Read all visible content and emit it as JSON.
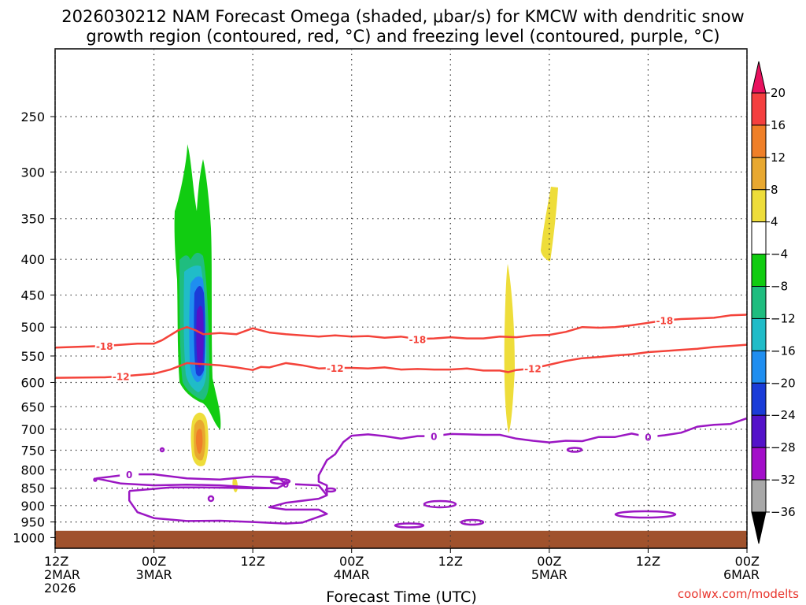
{
  "chart_data": {
    "type": "time-height cross-section",
    "title_line1": "2026030212 NAM Forecast Omega (shaded, μbar/s) for KMCW with dendritic snow",
    "title_line2": "growth region (contoured, red, °C) and freezing level (contoured, purple, °C)",
    "xlabel": "Forecast Time (UTC)",
    "credit": "coolwx.com/modelts",
    "x_range_hours": [
      0,
      84
    ],
    "x_ticks": [
      {
        "hour": 0,
        "lines": [
          "12Z",
          "2MAR",
          "2026"
        ]
      },
      {
        "hour": 12,
        "lines": [
          "00Z",
          "3MAR"
        ]
      },
      {
        "hour": 24,
        "lines": [
          "12Z"
        ]
      },
      {
        "hour": 36,
        "lines": [
          "00Z",
          "4MAR"
        ]
      },
      {
        "hour": 48,
        "lines": [
          "12Z"
        ]
      },
      {
        "hour": 60,
        "lines": [
          "00Z",
          "5MAR"
        ]
      },
      {
        "hour": 72,
        "lines": [
          "12Z"
        ]
      },
      {
        "hour": 84,
        "lines": [
          "00Z",
          "6MAR"
        ]
      }
    ],
    "y_ticks_hpa": [
      250,
      300,
      350,
      400,
      450,
      500,
      550,
      600,
      650,
      700,
      750,
      800,
      850,
      900,
      950,
      1000
    ],
    "y_range_hpa": [
      200,
      1036
    ],
    "ground_hpa": 978,
    "colorbar": {
      "labels": [
        "20",
        "16",
        "12",
        "8",
        "4",
        "−4",
        "−8",
        "−12",
        "−16",
        "−20",
        "−24",
        "−28",
        "−32",
        "−36"
      ],
      "colors": [
        "#e8115e",
        "#f43f3f",
        "#ef7f28",
        "#e8a830",
        "#eedd3a",
        "#ffffff",
        "#11cc11",
        "#1fbd7f",
        "#20bcc8",
        "#1f8ef0",
        "#1a3cd8",
        "#5412c9",
        "#a30ec9",
        "#a8a8a8",
        "#000000"
      ]
    },
    "contours": {
      "dgz_minus18": {
        "label": "-18",
        "color": "#f4433a",
        "points": [
          [
            0,
            535
          ],
          [
            6,
            532
          ],
          [
            10,
            528
          ],
          [
            12,
            528
          ],
          [
            13,
            522
          ],
          [
            15,
            505
          ],
          [
            16,
            500
          ],
          [
            17,
            505
          ],
          [
            18,
            512
          ],
          [
            20,
            510
          ],
          [
            22,
            512
          ],
          [
            24,
            502
          ],
          [
            26,
            509
          ],
          [
            28,
            512
          ],
          [
            30,
            514
          ],
          [
            32,
            516
          ],
          [
            34,
            514
          ],
          [
            36,
            516
          ],
          [
            38,
            515
          ],
          [
            40,
            518
          ],
          [
            42,
            516
          ],
          [
            44,
            520
          ],
          [
            46,
            519
          ],
          [
            48,
            517
          ],
          [
            50,
            519
          ],
          [
            52,
            519
          ],
          [
            54,
            516
          ],
          [
            56,
            517
          ],
          [
            58,
            514
          ],
          [
            60,
            513
          ],
          [
            62,
            508
          ],
          [
            64,
            500
          ],
          [
            66,
            501
          ],
          [
            68,
            500
          ],
          [
            70,
            497
          ],
          [
            72,
            493
          ],
          [
            74,
            489
          ],
          [
            76,
            487
          ],
          [
            78,
            486
          ],
          [
            80,
            485
          ],
          [
            82,
            481
          ],
          [
            84,
            480
          ]
        ]
      },
      "dgz_minus12": {
        "label": "-12",
        "color": "#f4433a",
        "points": [
          [
            0,
            591
          ],
          [
            6,
            590
          ],
          [
            8,
            588
          ],
          [
            12,
            583
          ],
          [
            14,
            575
          ],
          [
            16,
            563
          ],
          [
            18,
            565
          ],
          [
            20,
            567
          ],
          [
            22,
            571
          ],
          [
            24,
            576
          ],
          [
            25,
            570
          ],
          [
            26,
            571
          ],
          [
            28,
            563
          ],
          [
            30,
            567
          ],
          [
            32,
            573
          ],
          [
            34,
            572
          ],
          [
            36,
            572
          ],
          [
            38,
            573
          ],
          [
            40,
            571
          ],
          [
            42,
            575
          ],
          [
            44,
            574
          ],
          [
            46,
            575
          ],
          [
            48,
            575
          ],
          [
            50,
            573
          ],
          [
            52,
            577
          ],
          [
            54,
            577
          ],
          [
            55,
            580
          ],
          [
            56,
            576
          ],
          [
            58,
            573
          ],
          [
            60,
            566
          ],
          [
            62,
            559
          ],
          [
            64,
            554
          ],
          [
            66,
            552
          ],
          [
            68,
            549
          ],
          [
            70,
            547
          ],
          [
            72,
            543
          ],
          [
            74,
            541
          ],
          [
            76,
            539
          ],
          [
            78,
            537
          ],
          [
            80,
            534
          ],
          [
            82,
            532
          ],
          [
            84,
            530
          ]
        ]
      },
      "freezing_main": {
        "label": "0",
        "color": "#9b17c3",
        "points": [
          [
            33,
            870
          ],
          [
            33,
            842
          ],
          [
            32,
            832
          ],
          [
            32,
            815
          ],
          [
            33,
            775
          ],
          [
            34,
            760
          ],
          [
            35,
            730
          ],
          [
            36,
            715
          ],
          [
            38,
            712
          ],
          [
            40,
            716
          ],
          [
            42,
            722
          ],
          [
            44,
            716
          ],
          [
            46,
            716
          ],
          [
            48,
            711
          ],
          [
            50,
            712
          ],
          [
            52,
            713
          ],
          [
            54,
            713
          ],
          [
            56,
            722
          ],
          [
            58,
            727
          ],
          [
            60,
            731
          ],
          [
            62,
            727
          ],
          [
            64,
            728
          ],
          [
            66,
            718
          ],
          [
            68,
            718
          ],
          [
            70,
            710
          ],
          [
            72,
            718
          ],
          [
            74,
            714
          ],
          [
            76,
            708
          ],
          [
            78,
            694
          ],
          [
            80,
            690
          ],
          [
            82,
            688
          ],
          [
            84,
            675
          ]
        ]
      },
      "freezing_low": {
        "label": "0",
        "color": "#9b17c3",
        "points": [
          [
            9,
            858
          ],
          [
            14,
            848
          ],
          [
            18,
            848
          ],
          [
            24,
            850
          ],
          [
            27,
            850
          ],
          [
            28,
            838
          ],
          [
            32,
            842
          ],
          [
            33,
            870
          ],
          [
            32,
            880
          ],
          [
            28,
            892
          ],
          [
            26,
            905
          ],
          [
            28,
            912
          ],
          [
            32,
            912
          ],
          [
            33,
            925
          ],
          [
            30,
            952
          ],
          [
            28,
            955
          ],
          [
            24,
            950
          ],
          [
            20,
            946
          ],
          [
            16,
            947
          ],
          [
            12,
            938
          ],
          [
            10,
            920
          ],
          [
            9,
            885
          ],
          [
            9,
            858
          ]
        ]
      },
      "freezing_mid": {
        "label": "0",
        "color": "#9b17c3",
        "points": [
          [
            5,
            823
          ],
          [
            9,
            812
          ],
          [
            12,
            812
          ],
          [
            16,
            823
          ],
          [
            20,
            826
          ],
          [
            24,
            818
          ],
          [
            27,
            820
          ],
          [
            28,
            838
          ],
          [
            27,
            850
          ],
          [
            24,
            848
          ],
          [
            20,
            842
          ],
          [
            16,
            840
          ],
          [
            12,
            842
          ],
          [
            8,
            837
          ],
          [
            5,
            823
          ]
        ]
      }
    }
  }
}
